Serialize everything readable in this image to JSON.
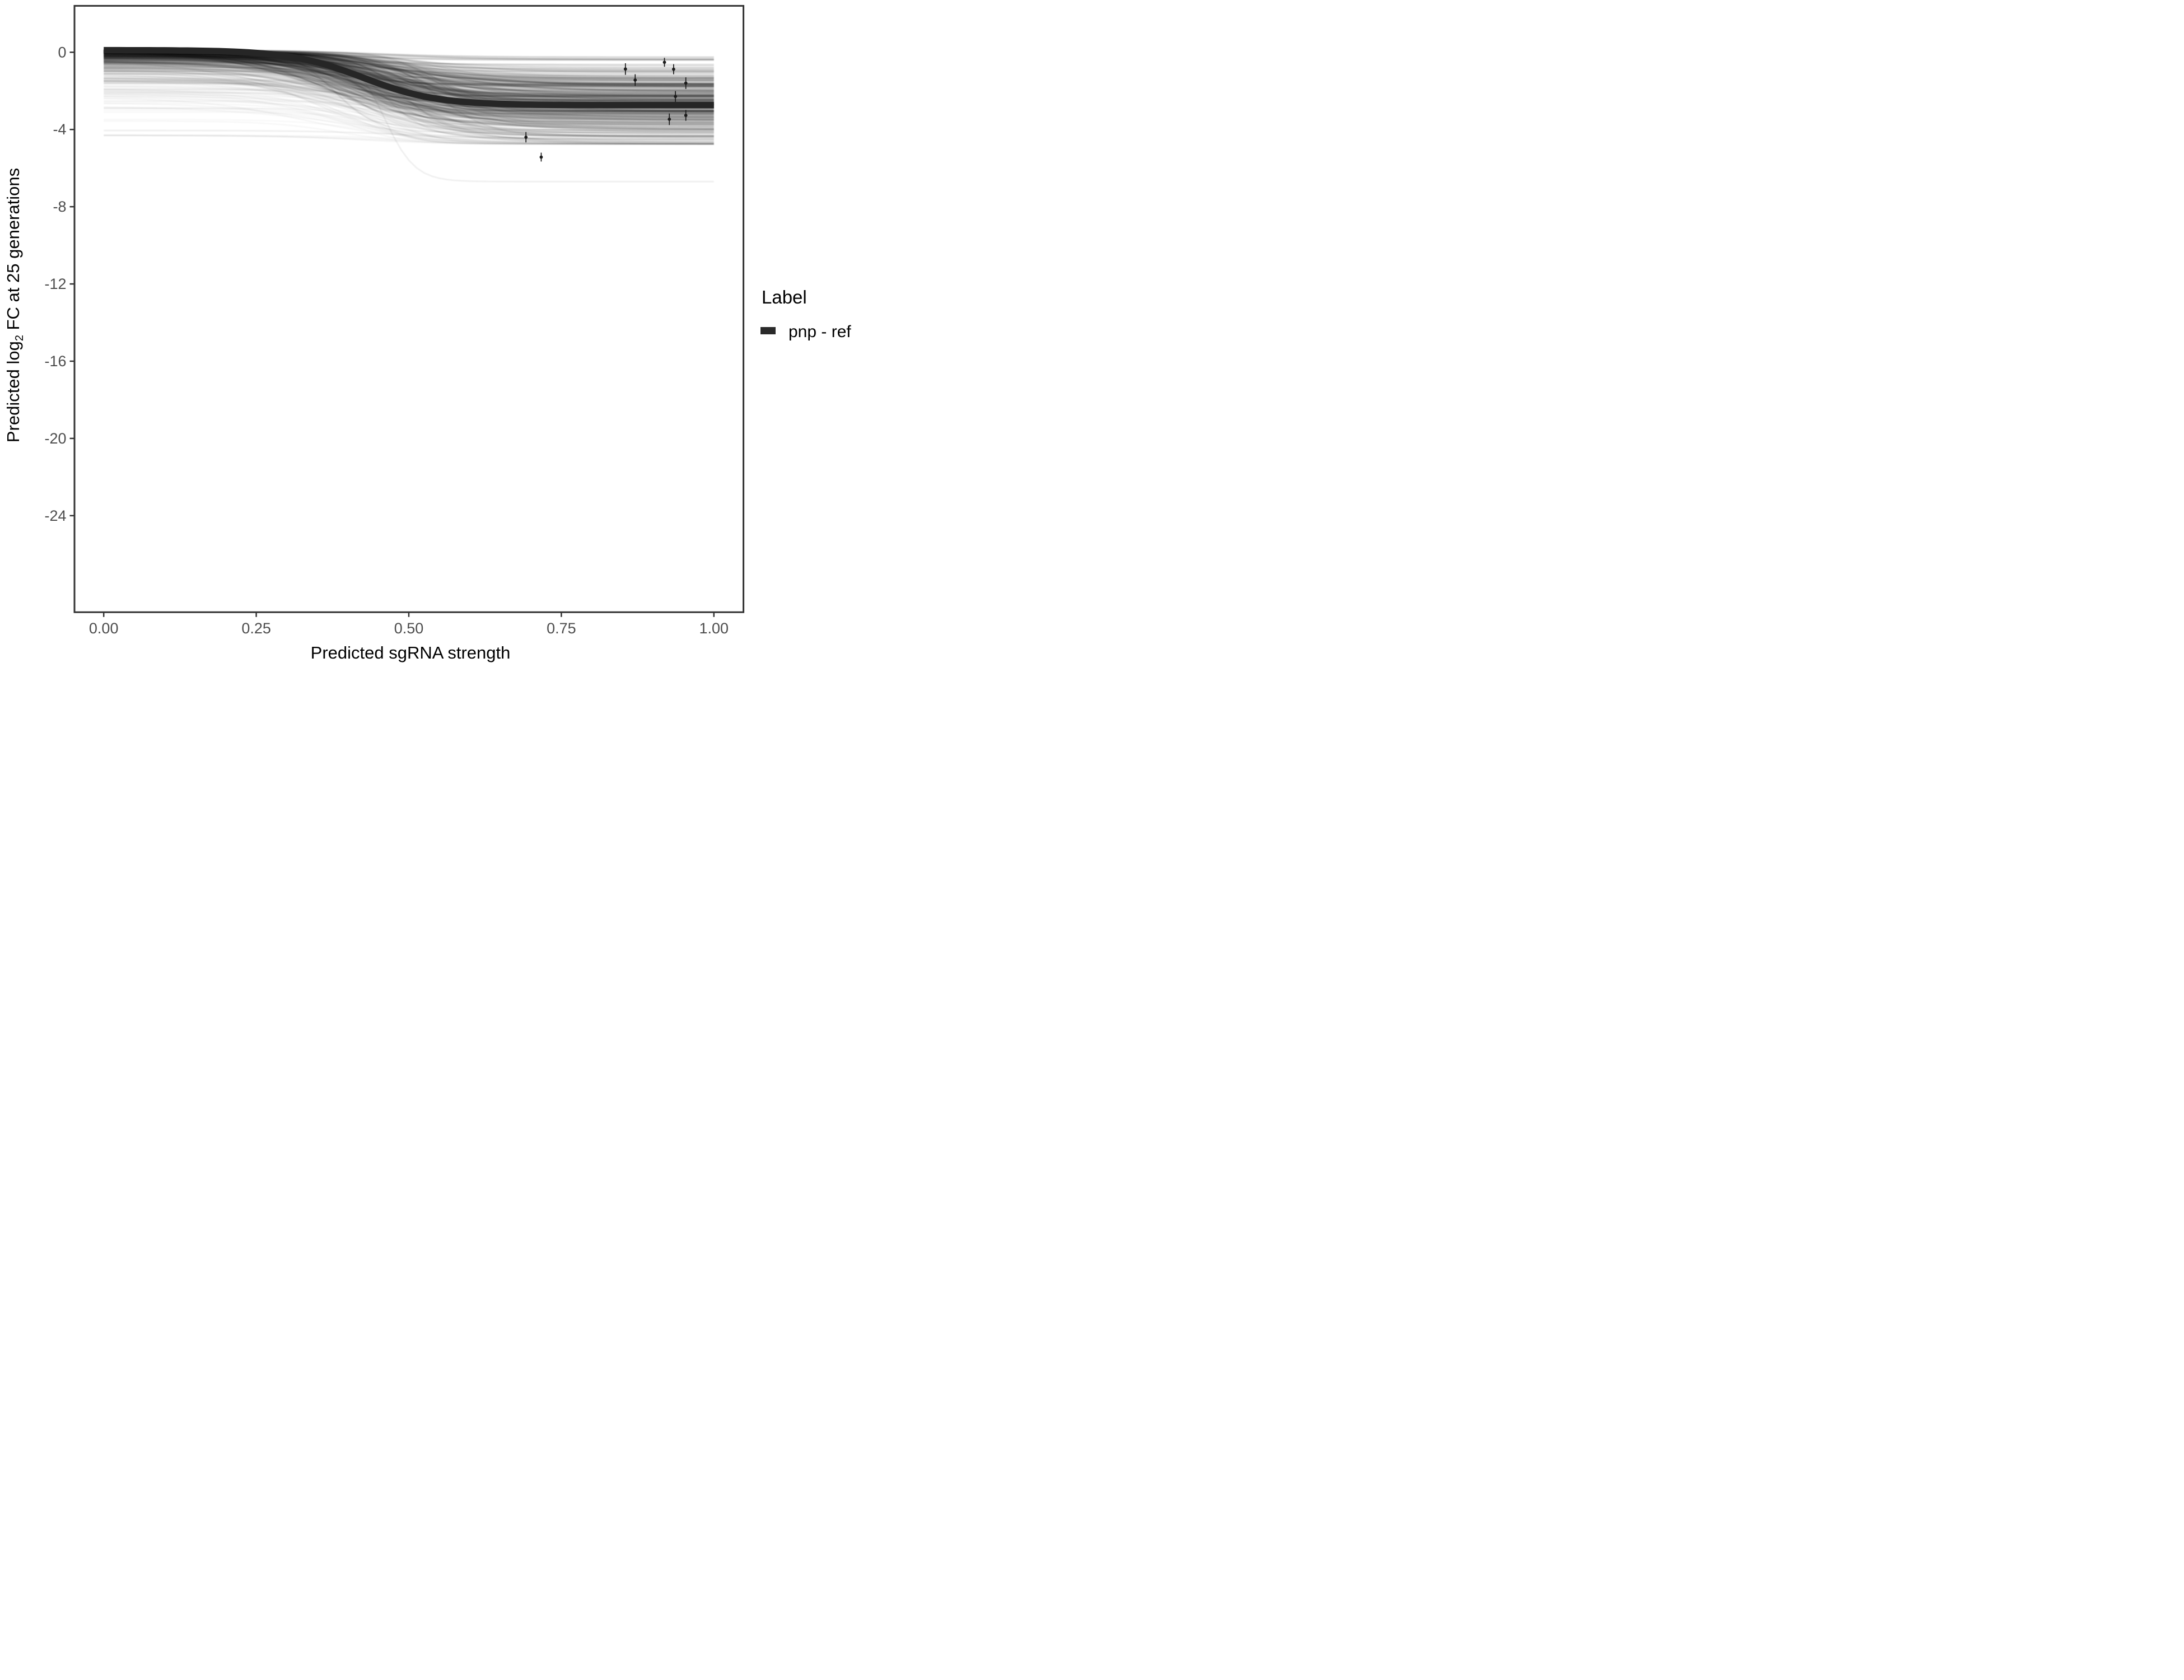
{
  "chart_data": {
    "type": "line",
    "title": "",
    "xlabel": "Predicted sgRNA strength",
    "ylabel": "Predicted log2 FC at 25 generations",
    "ylabel_parts": {
      "pre": "Predicted  log",
      "sub": "2",
      "post": " FC at 25 generations"
    },
    "xlim": [
      0,
      1
    ],
    "ylim_displayed": [
      -29.0,
      2.4
    ],
    "grid": false,
    "x_ticks": [
      {
        "v": 0.0,
        "label": "0.00"
      },
      {
        "v": 0.25,
        "label": "0.25"
      },
      {
        "v": 0.5,
        "label": "0.50"
      },
      {
        "v": 0.75,
        "label": "0.75"
      },
      {
        "v": 1.0,
        "label": "1.00"
      }
    ],
    "y_ticks": [
      {
        "v": 0,
        "label": "0"
      },
      {
        "v": -4,
        "label": "-4"
      },
      {
        "v": -8,
        "label": "-8"
      },
      {
        "v": -12,
        "label": "-12"
      },
      {
        "v": -16,
        "label": "-16"
      },
      {
        "v": -20,
        "label": "-20"
      },
      {
        "v": -24,
        "label": "-24"
      }
    ],
    "legend": {
      "title": "Label",
      "position": "right",
      "entries": [
        {
          "label": "pnp - ref",
          "type": "line",
          "color": "#262626"
        }
      ]
    },
    "fitted_line": {
      "name": "pnp - ref",
      "model": "logistic-decline",
      "baseline": 0.11,
      "amplitude": 2.85,
      "midpoint": 0.425,
      "steepness": 0.06,
      "end_value": -2.74,
      "x_range": [
        0,
        1
      ],
      "color": "#262626",
      "stroke_width": 11.5
    },
    "observed_points": [
      {
        "x": 0.855,
        "y": -0.87,
        "err": 0.3
      },
      {
        "x": 0.871,
        "y": -1.44,
        "err": 0.3
      },
      {
        "x": 0.919,
        "y": -0.52,
        "err": 0.23
      },
      {
        "x": 0.934,
        "y": -0.88,
        "err": 0.26
      },
      {
        "x": 0.954,
        "y": -1.6,
        "err": 0.3
      },
      {
        "x": 0.937,
        "y": -2.29,
        "err": 0.28
      },
      {
        "x": 0.927,
        "y": -3.47,
        "err": 0.3
      },
      {
        "x": 0.954,
        "y": -3.27,
        "err": 0.28
      },
      {
        "x": 0.692,
        "y": -4.4,
        "err": 0.27
      },
      {
        "x": 0.717,
        "y": -5.43,
        "err": 0.23
      }
    ],
    "posterior_draws": {
      "description": "bundle of translucent posterior-draw sigmoid curves behind the fitted line",
      "n": 430,
      "seed": 42,
      "x_range": [
        0,
        1
      ],
      "intercept": {
        "base": 0.1,
        "spread": 0.62,
        "min": -4.3
      },
      "amplitude": {
        "mean": 2.35,
        "sd": 0.95,
        "min": 0.35,
        "max": 4.3,
        "end_floor": -4.75
      },
      "midpoint": {
        "mean": 0.44,
        "sd": 0.05,
        "min": 0.3,
        "max": 0.62
      },
      "steepness": {
        "mean": 0.07,
        "sd": 0.022,
        "min": 0.035,
        "max": 0.14
      },
      "opacity": {
        "base": 0.018,
        "scale": 0.05,
        "tau": 1.2,
        "jitter": 0.012,
        "min": 0.012,
        "max": 0.09
      },
      "color": "#000000",
      "stroke_width": 2.8
    },
    "special_draws": [
      {
        "intercept": -0.1,
        "drop": 6.6,
        "midpoint": 0.46,
        "steepness": 0.025,
        "opacity": 0.06,
        "note": "single pale curve plunging to about -6.7"
      },
      {
        "intercept": -4.05,
        "drop": 0.45,
        "midpoint": 0.5,
        "steepness": 0.08,
        "opacity": 0.06,
        "note": "lowest pale flat curve near -4 to -4.5"
      }
    ],
    "colors": {
      "background": "#ffffff",
      "panel_border": "#333333",
      "tick_mark": "#333333",
      "tick_label": "#4d4d4d",
      "axis_title": "#000000",
      "fitted_line": "#262626",
      "points": "#1b1b1b",
      "draws": "#000000",
      "legend_key": "#2a2a2a"
    }
  }
}
